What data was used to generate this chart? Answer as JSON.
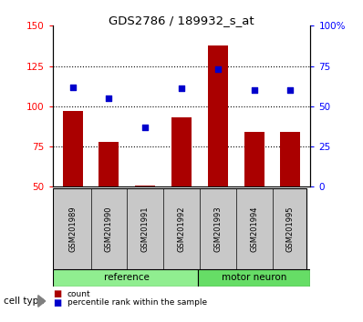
{
  "title": "GDS2786 / 189932_s_at",
  "samples": [
    "GSM201989",
    "GSM201990",
    "GSM201991",
    "GSM201992",
    "GSM201993",
    "GSM201994",
    "GSM201995"
  ],
  "counts": [
    97,
    78,
    51,
    93,
    138,
    84,
    84
  ],
  "percentiles": [
    62,
    55,
    37,
    61,
    73,
    60,
    60
  ],
  "groups": [
    "reference",
    "reference",
    "reference",
    "reference",
    "motor neuron",
    "motor neuron",
    "motor neuron"
  ],
  "ref_color": "#90EE90",
  "mn_color": "#66DD66",
  "bar_color": "#AA0000",
  "dot_color": "#0000CC",
  "sample_box_color": "#C8C8C8",
  "ylim_left": [
    50,
    150
  ],
  "ylim_right": [
    0,
    100
  ],
  "yticks_left": [
    50,
    75,
    100,
    125,
    150
  ],
  "yticks_right": [
    0,
    25,
    50,
    75,
    100
  ],
  "ytick_labels_right": [
    "0",
    "25",
    "50",
    "75",
    "100%"
  ],
  "grid_values": [
    75,
    100,
    125
  ],
  "legend_count_label": "count",
  "legend_percentile_label": "percentile rank within the sample",
  "cell_type_label": "cell type"
}
